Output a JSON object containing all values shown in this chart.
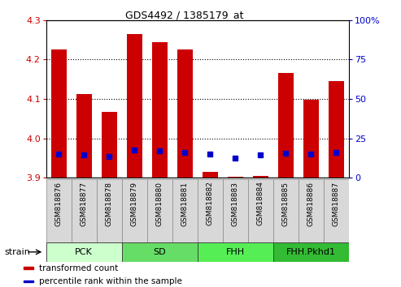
{
  "title": "GDS4492 / 1385179_at",
  "samples": [
    "GSM818876",
    "GSM818877",
    "GSM818878",
    "GSM818879",
    "GSM818880",
    "GSM818881",
    "GSM818882",
    "GSM818883",
    "GSM818884",
    "GSM818885",
    "GSM818886",
    "GSM818887"
  ],
  "red_values": [
    4.225,
    4.112,
    4.068,
    4.265,
    4.245,
    4.225,
    3.915,
    3.903,
    3.905,
    4.165,
    4.098,
    4.145
  ],
  "blue_values": [
    3.96,
    3.958,
    3.955,
    3.97,
    3.968,
    3.965,
    3.96,
    3.95,
    3.958,
    3.963,
    3.96,
    3.965
  ],
  "ylim_left": [
    3.9,
    4.3
  ],
  "ylim_right": [
    0,
    100
  ],
  "yticks_left": [
    3.9,
    4.0,
    4.1,
    4.2,
    4.3
  ],
  "yticks_right": [
    0,
    25,
    50,
    75,
    100
  ],
  "ytick_labels_right": [
    "0",
    "25",
    "50",
    "75",
    "100%"
  ],
  "grid_lines": [
    4.0,
    4.1,
    4.2
  ],
  "groups": [
    {
      "label": "PCK",
      "start": 0,
      "end": 2,
      "color": "#ccffcc"
    },
    {
      "label": "SD",
      "start": 3,
      "end": 5,
      "color": "#66dd66"
    },
    {
      "label": "FHH",
      "start": 6,
      "end": 8,
      "color": "#55ee55"
    },
    {
      "label": "FHH.Pkhd1",
      "start": 9,
      "end": 11,
      "color": "#33bb33"
    }
  ],
  "bar_color": "#cc0000",
  "dot_color": "#0000cc",
  "base_value": 3.9,
  "left_tick_color": "#cc0000",
  "right_tick_color": "#0000cc",
  "legend_items": [
    {
      "label": "transformed count",
      "color": "#cc0000"
    },
    {
      "label": "percentile rank within the sample",
      "color": "#0000cc"
    }
  ],
  "strain_label": "strain",
  "cell_bg": "#d8d8d8",
  "cell_edge": "#888888"
}
